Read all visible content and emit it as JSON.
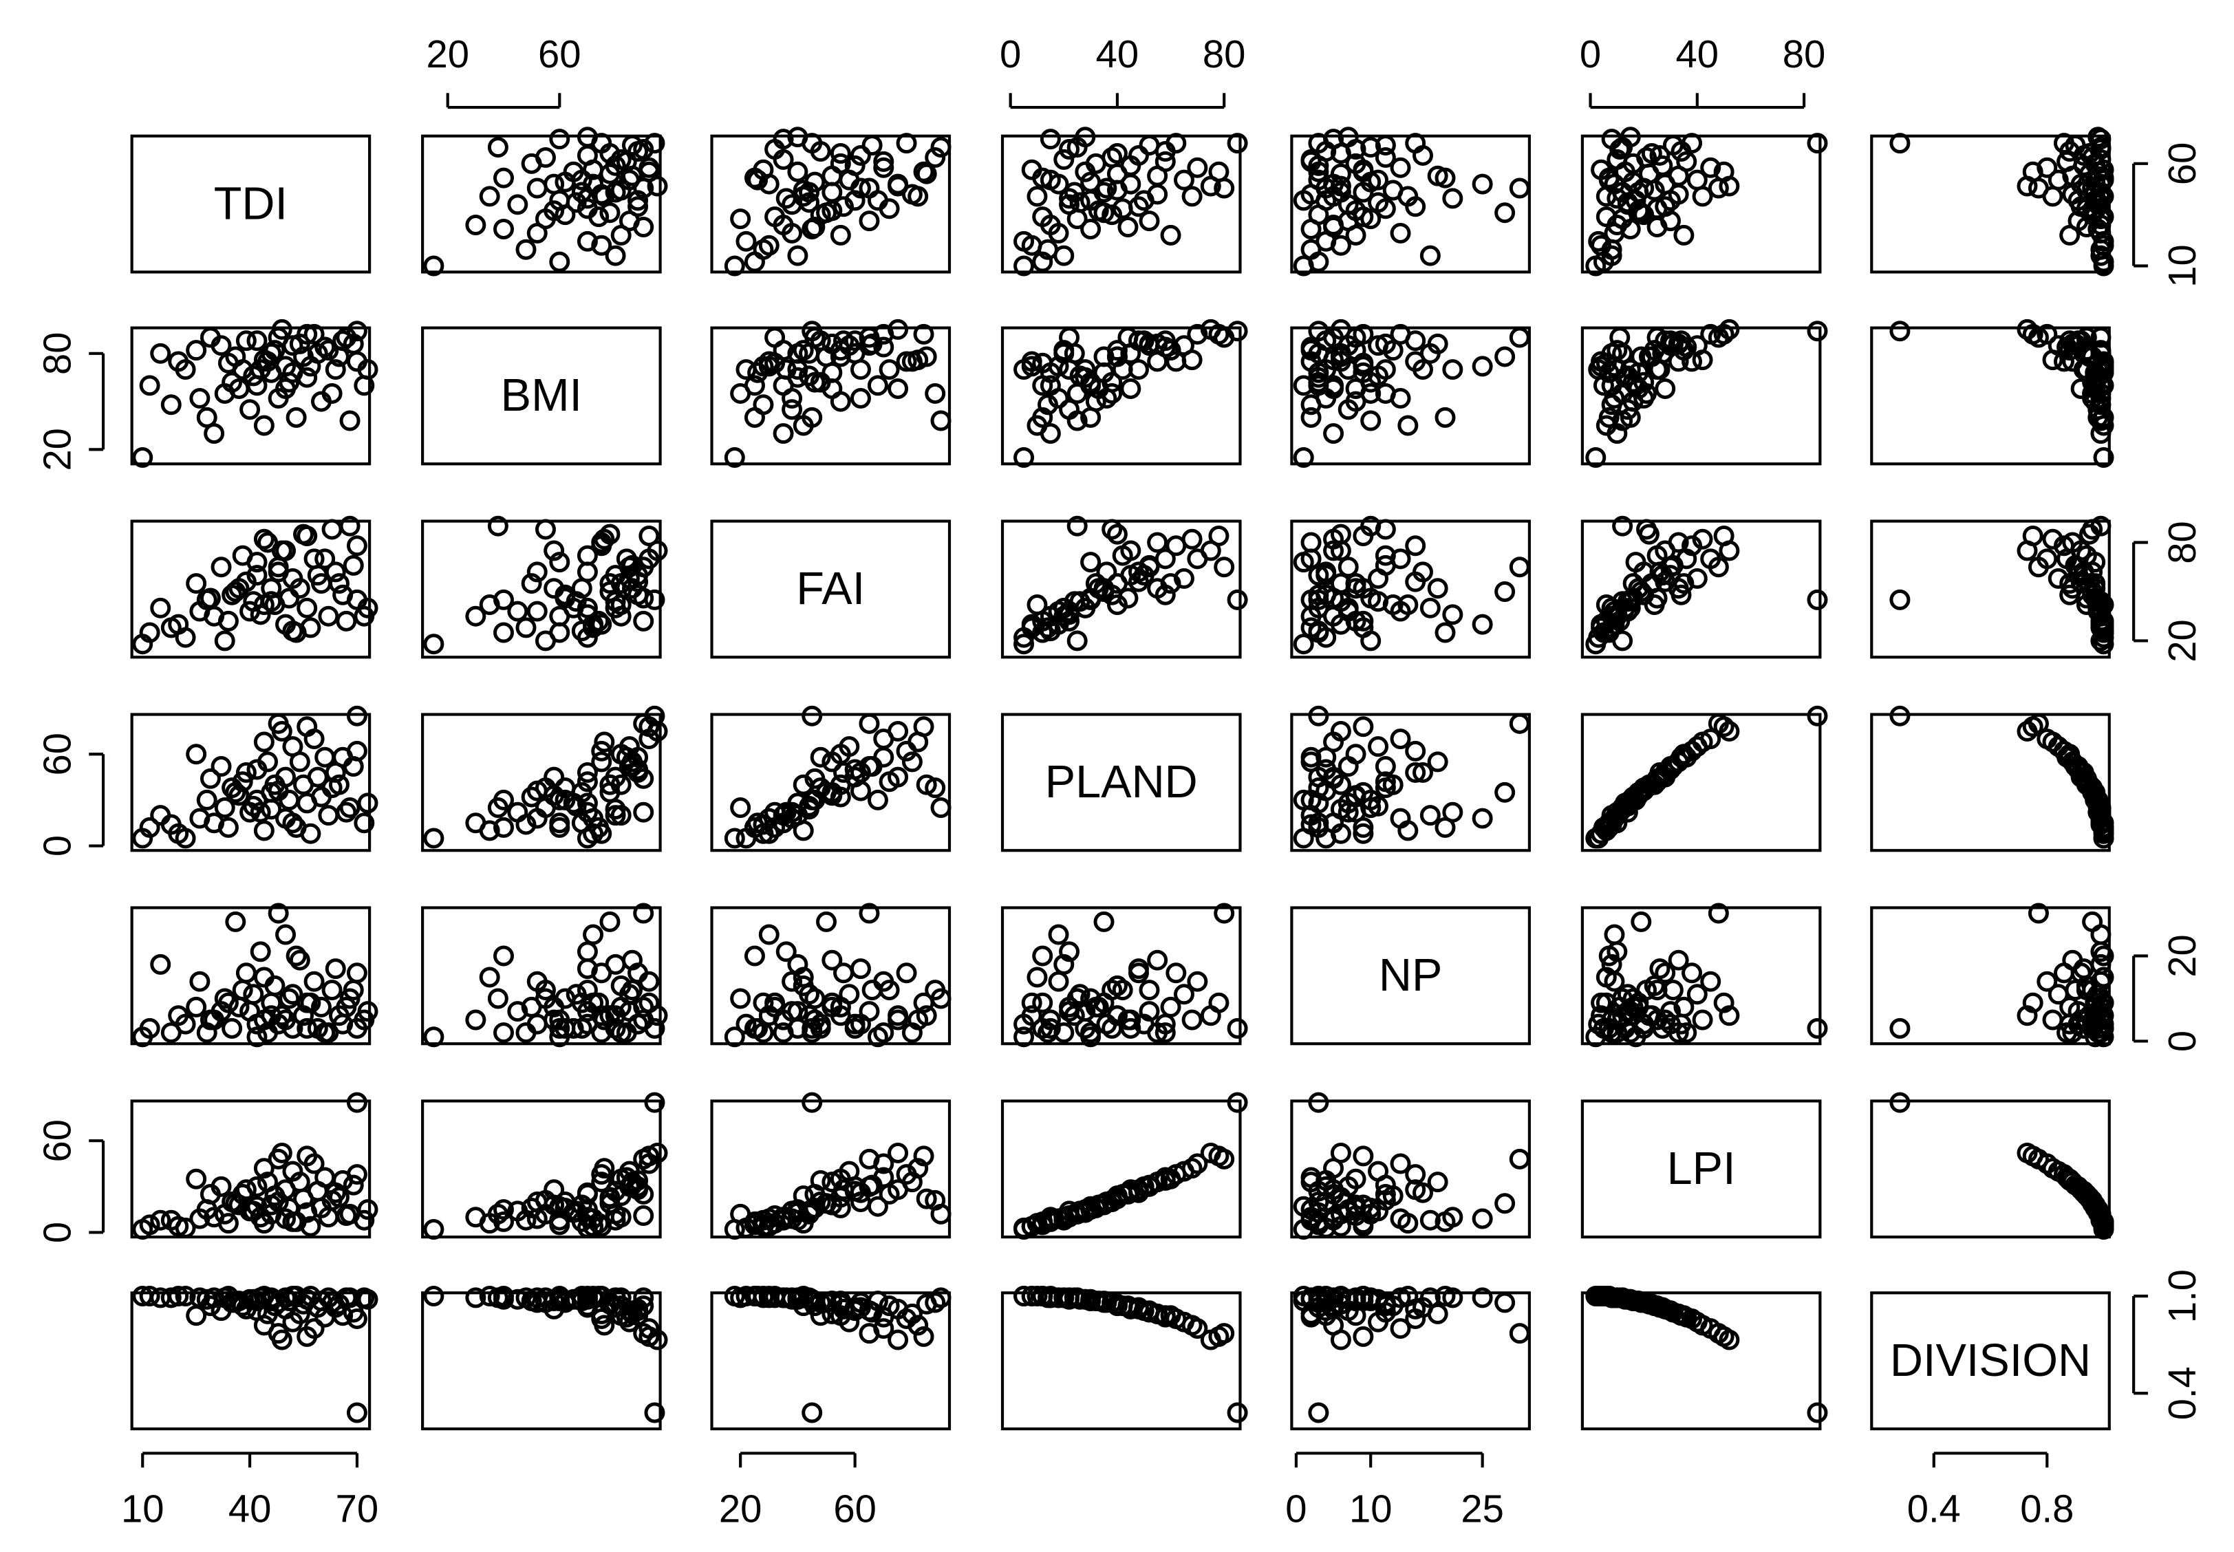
{
  "chart_data": {
    "type": "pairs",
    "variables": [
      {
        "name": "TDI",
        "lim": [
          7,
          73.5
        ],
        "xticks": [
          10,
          40,
          70
        ],
        "yticks": [
          10,
          60
        ],
        "values": [
          10,
          12,
          15,
          20,
          25,
          28,
          30,
          33,
          35,
          38,
          40,
          42,
          44,
          45,
          46,
          48,
          50,
          50,
          52,
          53,
          55,
          56,
          58,
          60,
          62,
          64,
          66,
          68,
          70,
          70,
          72,
          36,
          42,
          47,
          22,
          32,
          57,
          63,
          18,
          49,
          54,
          41,
          59,
          67,
          26,
          44,
          51,
          61,
          39,
          73,
          34,
          48,
          56,
          65,
          43,
          29,
          52,
          69,
          37,
          46
        ]
      },
      {
        "name": "BMI",
        "lim": [
          11,
          96
        ],
        "xticks": [
          20,
          60
        ],
        "yticks": [
          20,
          80
        ],
        "values": [
          15,
          60,
          80,
          75,
          82,
          40,
          30,
          55,
          62,
          70,
          45,
          88,
          35,
          75,
          68,
          90,
          72,
          58,
          85,
          40,
          78,
          65,
          92,
          50,
          82,
          70,
          88,
          38,
          94,
          75,
          60,
          78,
          60,
          82,
          70,
          85,
          72,
          55,
          48,
          95,
          86,
          66,
          80,
          90,
          52,
          76,
          62,
          84,
          88,
          70,
          74,
          52,
          92,
          78,
          70,
          90,
          68,
          86,
          58,
          80
        ]
      },
      {
        "name": "FAI",
        "lim": [
          10,
          93
        ],
        "xticks": [
          20,
          60
        ],
        "yticks": [
          20,
          80
        ],
        "values": [
          18,
          25,
          40,
          30,
          55,
          45,
          35,
          20,
          48,
          72,
          38,
          60,
          42,
          80,
          52,
          65,
          30,
          75,
          58,
          25,
          85,
          40,
          70,
          55,
          35,
          62,
          48,
          90,
          45,
          78,
          35,
          50,
          68,
          42,
          22,
          65,
          28,
          88,
          28,
          75,
          52,
          44,
          60,
          32,
          38,
          82,
          46,
          70,
          56,
          40,
          32,
          62,
          84,
          55,
          36,
          46,
          26,
          66,
          52,
          44
        ]
      },
      {
        "name": "PLAND",
        "lim": [
          -3,
          86
        ],
        "xticks": [
          0,
          40,
          80
        ],
        "yticks": [
          0,
          60
        ],
        "values": [
          5,
          12,
          20,
          8,
          60,
          30,
          15,
          25,
          38,
          42,
          22,
          50,
          10,
          55,
          35,
          80,
          18,
          45,
          65,
          12,
          40,
          28,
          70,
          32,
          20,
          48,
          58,
          25,
          85,
          62,
          15,
          35,
          30,
          40,
          5,
          52,
          8,
          38,
          14,
          75,
          55,
          26,
          45,
          22,
          18,
          68,
          30,
          58,
          48,
          28,
          12,
          36,
          78,
          40,
          22,
          44,
          15,
          52,
          33,
          24
        ]
      },
      {
        "name": "NP",
        "lim": [
          -0.6,
          31.3
        ],
        "xticks": [
          0,
          10,
          25
        ],
        "yticks": [
          0,
          20
        ],
        "values": [
          1,
          3,
          18,
          6,
          8,
          2,
          5,
          10,
          3,
          12,
          7,
          4,
          15,
          2,
          9,
          30,
          25,
          5,
          11,
          20,
          6,
          3,
          14,
          8,
          2,
          17,
          4,
          10,
          3,
          16,
          5,
          28,
          1,
          13,
          4,
          7,
          9,
          12,
          2,
          6,
          19,
          11,
          3,
          8,
          14,
          5,
          10,
          2,
          16,
          7,
          9,
          4,
          9,
          6,
          21,
          5,
          3,
          12,
          8,
          6
        ]
      },
      {
        "name": "LPI",
        "lim": [
          -3,
          86
        ],
        "xticks": [
          0,
          40,
          80
        ],
        "yticks": [
          0,
          60
        ],
        "values": [
          2,
          5,
          8,
          4,
          35,
          15,
          10,
          12,
          20,
          25,
          14,
          30,
          6,
          33,
          18,
          48,
          9,
          28,
          40,
          7,
          22,
          13,
          45,
          16,
          10,
          26,
          34,
          12,
          85,
          38,
          8,
          19,
          17,
          24,
          3,
          30,
          4,
          21,
          8,
          52,
          33,
          14,
          27,
          11,
          9,
          42,
          16,
          36,
          28,
          15,
          6,
          20,
          50,
          23,
          10,
          25,
          7,
          31,
          18,
          12
        ]
      },
      {
        "name": "DIVISION",
        "lim": [
          0.18,
          1.02
        ],
        "xticks": [
          0.4,
          0.8
        ],
        "yticks": [
          0.4,
          {
            "value": 1,
            "label": "1.0"
          }
        ],
        "values": [
          1.0,
          1.0,
          0.99,
          1.0,
          0.88,
          0.98,
          0.99,
          0.99,
          0.96,
          0.94,
          0.98,
          0.91,
          1.0,
          0.89,
          0.97,
          0.77,
          0.99,
          0.92,
          0.84,
          1.0,
          0.95,
          0.98,
          0.8,
          0.97,
          0.99,
          0.93,
          0.88,
          0.99,
          0.28,
          0.86,
          0.99,
          0.96,
          0.97,
          0.94,
          1.0,
          0.91,
          1.0,
          0.96,
          0.99,
          0.73,
          0.89,
          0.98,
          0.93,
          0.99,
          0.99,
          0.82,
          0.97,
          0.87,
          0.92,
          0.98,
          1.0,
          0.96,
          0.75,
          0.95,
          0.99,
          0.94,
          1.0,
          0.9,
          0.97,
          0.99
        ]
      }
    ]
  }
}
